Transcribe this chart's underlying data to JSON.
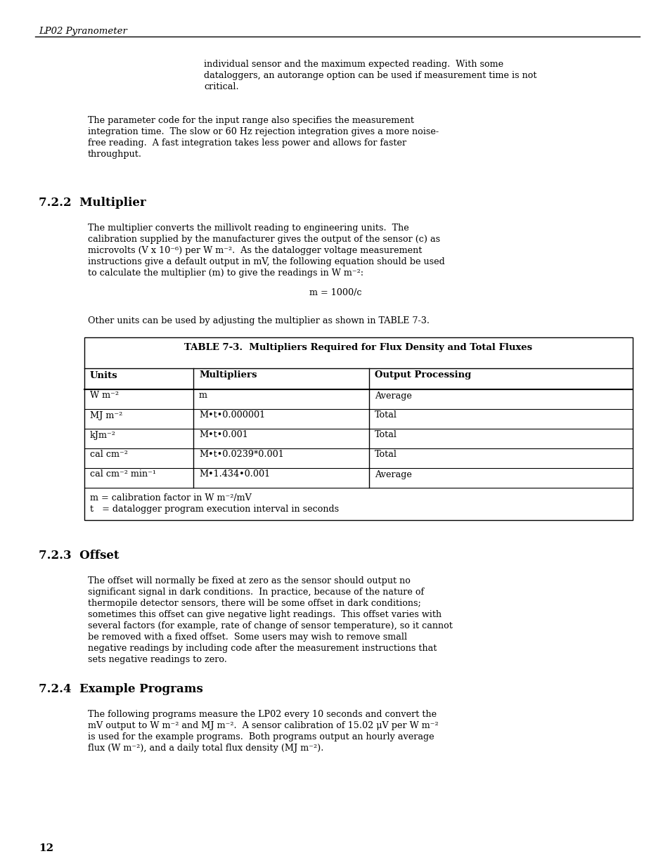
{
  "page_bg": "#ffffff",
  "header_text": "LP02 Pyranometer",
  "page_number": "12",
  "font_family": "DejaVu Serif",
  "continuation_text": [
    "individual sensor and the maximum expected reading.  With some",
    "dataloggers, an autorange option can be used if measurement time is not",
    "critical."
  ],
  "para1_text": [
    "The parameter code for the input range also specifies the measurement",
    "integration time.  The slow or 60 Hz rejection integration gives a more noise-",
    "free reading.  A fast integration takes less power and allows for faster",
    "throughput."
  ],
  "section_722_title": "7.2.2  Multiplier",
  "multiplier_para": [
    "The multiplier converts the millivolt reading to engineering units.  The",
    "calibration supplied by the manufacturer gives the output of the sensor (c) as",
    "microvolts (V x 10⁻⁶) per W m⁻².  As the datalogger voltage measurement",
    "instructions give a default output in mV, the following equation should be used",
    "to calculate the multiplier (m) to give the readings in W m⁻²:"
  ],
  "equation": "m = 1000/c",
  "other_units_text": "Other units can be used by adjusting the multiplier as shown in TABLE 7-3.",
  "table_title": "TABLE 7-3.  Multipliers Required for Flux Density and Total Fluxes",
  "table_headers": [
    "Units",
    "Multipliers",
    "Output Processing"
  ],
  "table_rows": [
    [
      "W m⁻²",
      "m",
      "Average"
    ],
    [
      "MJ m⁻²",
      "M•t•0.000001",
      "Total"
    ],
    [
      "kJm⁻²",
      "M•t•0.001",
      "Total"
    ],
    [
      "cal cm⁻²",
      "M•t•0.0239*0.001",
      "Total"
    ],
    [
      "cal cm⁻² min⁻¹",
      "M•1.434•0.001",
      "Average"
    ]
  ],
  "table_footnote1": "m = calibration factor in W m⁻²/mV",
  "table_footnote2": "t   = datalogger program execution interval in seconds",
  "section_723_title": "7.2.3  Offset",
  "offset_para": [
    "The offset will normally be fixed at zero as the sensor should output no",
    "significant signal in dark conditions.  In practice, because of the nature of",
    "thermopile detector sensors, there will be some offset in dark conditions;",
    "sometimes this offset can give negative light readings.  This offset varies with",
    "several factors (for example, rate of change of sensor temperature), so it cannot",
    "be removed with a fixed offset.  Some users may wish to remove small",
    "negative readings by including code after the measurement instructions that",
    "sets negative readings to zero."
  ],
  "section_724_title": "7.2.4  Example Programs",
  "example_para": [
    "The following programs measure the LP02 every 10 seconds and convert the",
    "mV output to W m⁻² and MJ m⁻².  A sensor calibration of 15.02 μV per W m⁻²",
    "is used for the example programs.  Both programs output an hourly average",
    "flux (W m⁻²), and a daily total flux density (MJ m⁻²)."
  ]
}
